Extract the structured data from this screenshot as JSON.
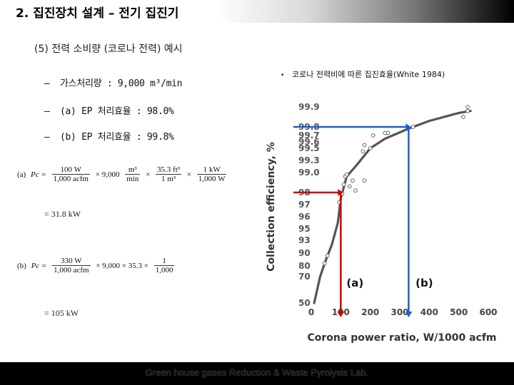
{
  "header": {
    "title": "2. 집진장치 설계 – 전기 집진기"
  },
  "section": {
    "title": "(5) 전력 소비량 (코로나 전력) 예시"
  },
  "bullets": [
    {
      "dash": "–",
      "text": "가스처리량 : 9,000 m³/min"
    },
    {
      "dash": "–",
      "text": "(a) EP 처리효율 : 98.0%"
    },
    {
      "dash": "–",
      "text": "(b) EP 처리효율 : 99.8%"
    }
  ],
  "reference": {
    "dot": "•",
    "text": "코로나 전력비에 따른 집진효율(White 1984)"
  },
  "formula_a": {
    "label": "(a)",
    "lhs": "Pc =",
    "f1_num": "100 W",
    "f1_den": "1,000 acfm",
    "times1": "× 9,000",
    "f2_num": "m³",
    "f2_den": "min",
    "times2": "×",
    "f3_num": "35.3 ft³",
    "f3_den": "1 m³",
    "times3": "×",
    "f4_num": "1 kW",
    "f4_den": "1,000 W",
    "result": "= 31.8 kW"
  },
  "formula_b": {
    "label": "(b)",
    "lhs": "Pc =",
    "f1_num": "330 W",
    "f1_den": "1,000 acfm",
    "times1": "× 9,000 × 35.3 ×",
    "f2_num": "1",
    "f2_den": "1,000",
    "result": "= 105 kW"
  },
  "footer": {
    "text": "Green house gases Reduction & Waste Pyrolysis Lab."
  },
  "chart_data": {
    "type": "scatter",
    "xlabel": "Corona power ratio, W/1000 acfm",
    "ylabel": "Collection efficiency, %",
    "xlim": [
      0,
      600
    ],
    "y_scale": "probability",
    "x_ticks": [
      0,
      100,
      200,
      300,
      400,
      500,
      600
    ],
    "y_ticks": [
      50,
      70,
      80,
      90,
      93,
      95,
      96,
      97,
      98,
      99.0,
      99.3,
      99.5,
      99.6,
      99.7,
      99.8,
      99.9
    ],
    "y_tick_labels": [
      "50",
      "70",
      "80",
      "90",
      "93",
      "95",
      "96",
      "97",
      "98",
      "99.0",
      "99.3",
      "99.5",
      "99.6",
      "99.7",
      "99.8",
      "99.9"
    ],
    "points": [
      {
        "x": 45,
        "y": 82
      },
      {
        "x": 55,
        "y": 88
      },
      {
        "x": 95,
        "y": 97.2
      },
      {
        "x": 105,
        "y": 97.9
      },
      {
        "x": 110,
        "y": 98.4
      },
      {
        "x": 115,
        "y": 98.8
      },
      {
        "x": 120,
        "y": 98.9
      },
      {
        "x": 130,
        "y": 98.3
      },
      {
        "x": 140,
        "y": 98.6
      },
      {
        "x": 150,
        "y": 98.1
      },
      {
        "x": 180,
        "y": 98.6
      },
      {
        "x": 175,
        "y": 99.45
      },
      {
        "x": 180,
        "y": 99.55
      },
      {
        "x": 200,
        "y": 99.5
      },
      {
        "x": 210,
        "y": 99.7
      },
      {
        "x": 250,
        "y": 99.73
      },
      {
        "x": 260,
        "y": 99.73
      },
      {
        "x": 345,
        "y": 99.8
      },
      {
        "x": 515,
        "y": 99.85
      },
      {
        "x": 530,
        "y": 99.9
      },
      {
        "x": 530,
        "y": 99.88
      }
    ],
    "curve": [
      {
        "x": 10,
        "y": 50
      },
      {
        "x": 30,
        "y": 70
      },
      {
        "x": 50,
        "y": 85
      },
      {
        "x": 70,
        "y": 92
      },
      {
        "x": 90,
        "y": 95.5
      },
      {
        "x": 100,
        "y": 97.5
      },
      {
        "x": 120,
        "y": 98.8
      },
      {
        "x": 150,
        "y": 99.15
      },
      {
        "x": 200,
        "y": 99.5
      },
      {
        "x": 250,
        "y": 99.65
      },
      {
        "x": 330,
        "y": 99.78
      },
      {
        "x": 400,
        "y": 99.83
      },
      {
        "x": 500,
        "y": 99.87
      },
      {
        "x": 540,
        "y": 99.88
      }
    ],
    "annotations": [
      {
        "label": "(a)",
        "x": 100,
        "y": 98,
        "color": "#d00000"
      },
      {
        "label": "(b)",
        "x": 330,
        "y": 99.8,
        "color": "#1f5fd6"
      }
    ]
  }
}
